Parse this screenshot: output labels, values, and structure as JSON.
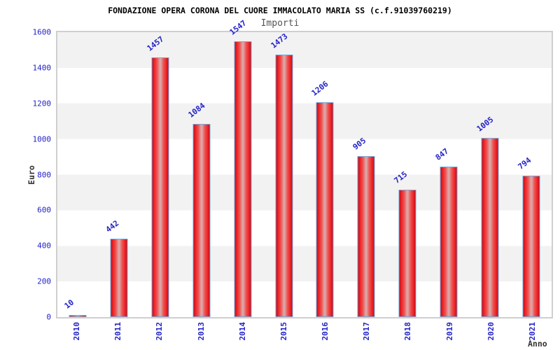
{
  "chart_data": {
    "type": "bar",
    "title": "FONDAZIONE OPERA CORONA DEL CUORE IMMACOLATO MARIA SS (c.f.91039760219)",
    "subtitle": "Importi",
    "xlabel": "Anno",
    "ylabel": "Euro",
    "categories": [
      "2010",
      "2011",
      "2012",
      "2013",
      "2014",
      "2015",
      "2016",
      "2017",
      "2018",
      "2019",
      "2020",
      "2021"
    ],
    "values": [
      10,
      442,
      1457,
      1084,
      1547,
      1473,
      1206,
      905,
      715,
      847,
      1005,
      794
    ],
    "ylim": [
      0,
      1600
    ],
    "ytick_step": 200,
    "yticks": [
      0,
      200,
      400,
      600,
      800,
      1000,
      1200,
      1400,
      1600
    ],
    "grid": "alternating-horizontal-bands",
    "legend": "none"
  },
  "colors": {
    "bar_fill_edge": "#ee2222",
    "bar_fill_center": "#dda4a4",
    "bar_border": "#74aadc",
    "axis_text": "#2323c8",
    "band_gray": "#f2f2f2",
    "band_white": "#ffffff",
    "plot_border": "#cfcfcf",
    "title_color": "#000000",
    "subtitle_color": "#555555",
    "axis_title_color": "#333333"
  }
}
